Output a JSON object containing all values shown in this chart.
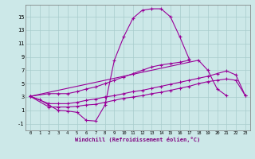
{
  "x": [
    0,
    1,
    2,
    3,
    4,
    5,
    6,
    7,
    8,
    9,
    10,
    11,
    12,
    13,
    14,
    15,
    16,
    17,
    18,
    19,
    20,
    21,
    22,
    23
  ],
  "line1": [
    3.1,
    2.6,
    1.8,
    1.0,
    0.9,
    0.7,
    -0.5,
    -0.6,
    1.8,
    8.5,
    12.0,
    14.8,
    16.0,
    16.2,
    16.2,
    15.0,
    12.0,
    8.7,
    null,
    null,
    null,
    null,
    null,
    null
  ],
  "line2": [
    3.1,
    null,
    null,
    null,
    null,
    null,
    null,
    null,
    null,
    null,
    null,
    null,
    null,
    null,
    null,
    null,
    null,
    null,
    8.5,
    7.0,
    4.2,
    3.2,
    null,
    null
  ],
  "line3": [
    3.1,
    null,
    3.5,
    3.5,
    3.5,
    3.8,
    4.2,
    4.5,
    5.0,
    5.5,
    6.0,
    6.5,
    7.0,
    7.5,
    7.8,
    8.0,
    8.2,
    8.5,
    null,
    null,
    null,
    null,
    null,
    null
  ],
  "line4": [
    3.1,
    null,
    1.5,
    1.5,
    1.5,
    1.6,
    1.8,
    1.9,
    2.2,
    2.5,
    2.8,
    3.0,
    3.2,
    3.5,
    3.7,
    4.0,
    4.3,
    4.6,
    5.0,
    5.3,
    5.5,
    5.7,
    5.5,
    3.2
  ],
  "line5": [
    3.1,
    null,
    2.0,
    2.0,
    2.0,
    2.2,
    2.5,
    2.7,
    3.0,
    3.2,
    3.5,
    3.8,
    4.0,
    4.3,
    4.6,
    4.9,
    5.2,
    5.5,
    5.8,
    6.1,
    6.5,
    6.9,
    6.3,
    3.2
  ],
  "bgcolor": "#cce8e8",
  "linecolor": "#990099",
  "xlabel": "Windchill (Refroidissement éolien,°C)",
  "ylabel_ticks": [
    -1,
    1,
    3,
    5,
    7,
    9,
    11,
    13,
    15
  ],
  "xlim": [
    -0.5,
    23.5
  ],
  "ylim": [
    -2.0,
    16.8
  ]
}
